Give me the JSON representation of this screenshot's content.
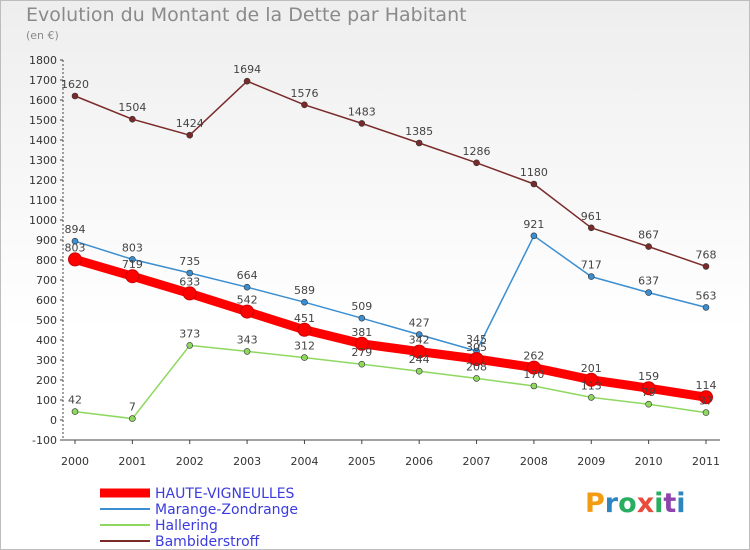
{
  "header": {
    "title": "Evolution du Montant de la Dette par Habitant",
    "subtitle": "(en €)"
  },
  "logo": {
    "text": "Proxiti",
    "letters": [
      "P",
      "r",
      "o",
      "x",
      "i",
      "t",
      "i"
    ],
    "colors": [
      "#f39c12",
      "#2e86c1",
      "#27ae60",
      "#e74c3c",
      "#27ae60",
      "#8e44ad",
      "#2e86c1"
    ]
  },
  "chart_data": {
    "type": "line",
    "x": [
      "2000",
      "2001",
      "2002",
      "2003",
      "2004",
      "2005",
      "2006",
      "2007",
      "2008",
      "2009",
      "2010",
      "2011"
    ],
    "ylim": [
      -100,
      1800
    ],
    "yticks": [
      "-100",
      "0",
      "100",
      "200",
      "300",
      "400",
      "500",
      "600",
      "700",
      "800",
      "900",
      "1000",
      "1100",
      "1200",
      "1300",
      "1400",
      "1500",
      "1600",
      "1700",
      "1800"
    ],
    "grid": false,
    "legend_position": "bottom",
    "series": [
      {
        "name": "Bambiderstroff",
        "color": "#7b2a2a",
        "values": [
          1620,
          1504,
          1424,
          1694,
          1576,
          1483,
          1385,
          1286,
          1180,
          961,
          867,
          768
        ],
        "labels": [
          "1620",
          "1504",
          "1424",
          "1694",
          "1576",
          "1483",
          "1385",
          "1286",
          "1180",
          "961",
          "867",
          "768"
        ]
      },
      {
        "name": "Marange-Zondrange",
        "color": "#3b8ed0",
        "values": [
          894,
          803,
          735,
          664,
          589,
          509,
          427,
          345,
          921,
          717,
          637,
          563
        ],
        "labels": [
          "894",
          "803",
          "735",
          "664",
          "589",
          "509",
          "427",
          "345",
          "921",
          "717",
          "637",
          "563"
        ]
      },
      {
        "name": "Hallering",
        "color": "#8fd860",
        "values": [
          42,
          7,
          373,
          343,
          312,
          279,
          244,
          208,
          170,
          113,
          79,
          37
        ],
        "labels": [
          "42",
          "7",
          "373",
          "343",
          "312",
          "279",
          "244",
          "208",
          "170",
          "113",
          "79",
          "37"
        ]
      },
      {
        "name": "HAUTE-VIGNEULLES",
        "color": "#ff0000",
        "values": [
          803,
          719,
          633,
          542,
          451,
          381,
          342,
          305,
          262,
          201,
          159,
          114
        ],
        "labels": [
          "803",
          "719",
          "633",
          "542",
          "451",
          "381",
          "342",
          "305",
          "262",
          "201",
          "159",
          "114"
        ]
      }
    ]
  }
}
